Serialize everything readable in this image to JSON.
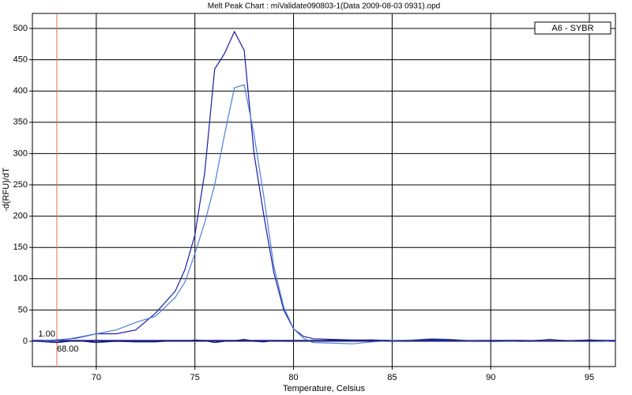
{
  "chart_data": {
    "type": "line",
    "title": "Melt Peak Chart : miValidate090803-1(Data 2009-08-03 0931).opd",
    "x_label": "Temperature, Celsius",
    "y_label": "-d(RFU)/dT",
    "x": [
      67,
      68,
      69,
      70,
      71,
      72,
      73,
      74,
      74.5,
      75,
      75.5,
      76,
      76.5,
      77,
      77.5,
      78,
      78.5,
      79,
      79.5,
      80,
      80.5,
      81,
      82,
      83,
      84,
      85,
      86,
      87,
      88,
      89,
      90,
      91,
      92,
      93,
      94,
      95,
      96
    ],
    "series": [
      {
        "name": "A6 - SYBR",
        "color": "#1c1ca8",
        "values": [
          0,
          2,
          5,
          12,
          12,
          18,
          45,
          80,
          115,
          170,
          270,
          435,
          460,
          495,
          465,
          300,
          200,
          110,
          50,
          20,
          8,
          4,
          3,
          2,
          2,
          1,
          1,
          3,
          2,
          1,
          0,
          0,
          0,
          1,
          1,
          2,
          1
        ]
      },
      {
        "color": "#4a80dc",
        "values": [
          0,
          1,
          6,
          12,
          18,
          30,
          40,
          70,
          95,
          140,
          190,
          250,
          330,
          405,
          410,
          330,
          230,
          120,
          55,
          20,
          5,
          -2,
          -3,
          -4,
          -1,
          1,
          2,
          4,
          3,
          1,
          0,
          0,
          1,
          2,
          1,
          2,
          0
        ]
      },
      {
        "color": "#202060",
        "values": [
          0,
          -2,
          1,
          -2,
          0,
          -1,
          -1,
          1,
          0,
          2,
          1,
          -2,
          0,
          1,
          3,
          0,
          -1,
          1,
          0,
          0,
          1,
          0,
          2,
          1,
          2,
          0,
          1,
          3,
          2,
          0,
          0,
          1,
          0,
          3,
          0,
          2,
          1
        ]
      }
    ],
    "legend": "top-right",
    "threshold": {
      "value": 1,
      "label": "1.00"
    },
    "marker": {
      "value": 68,
      "label": "68.00"
    },
    "xlim": [
      66.76,
      96.32
    ],
    "ylim": [
      -40.4,
      524
    ],
    "xticks": [
      70,
      75,
      80,
      85,
      90,
      95
    ],
    "yticks": [
      0,
      50,
      100,
      150,
      200,
      250,
      300,
      350,
      400,
      450,
      500
    ],
    "grid": true
  }
}
